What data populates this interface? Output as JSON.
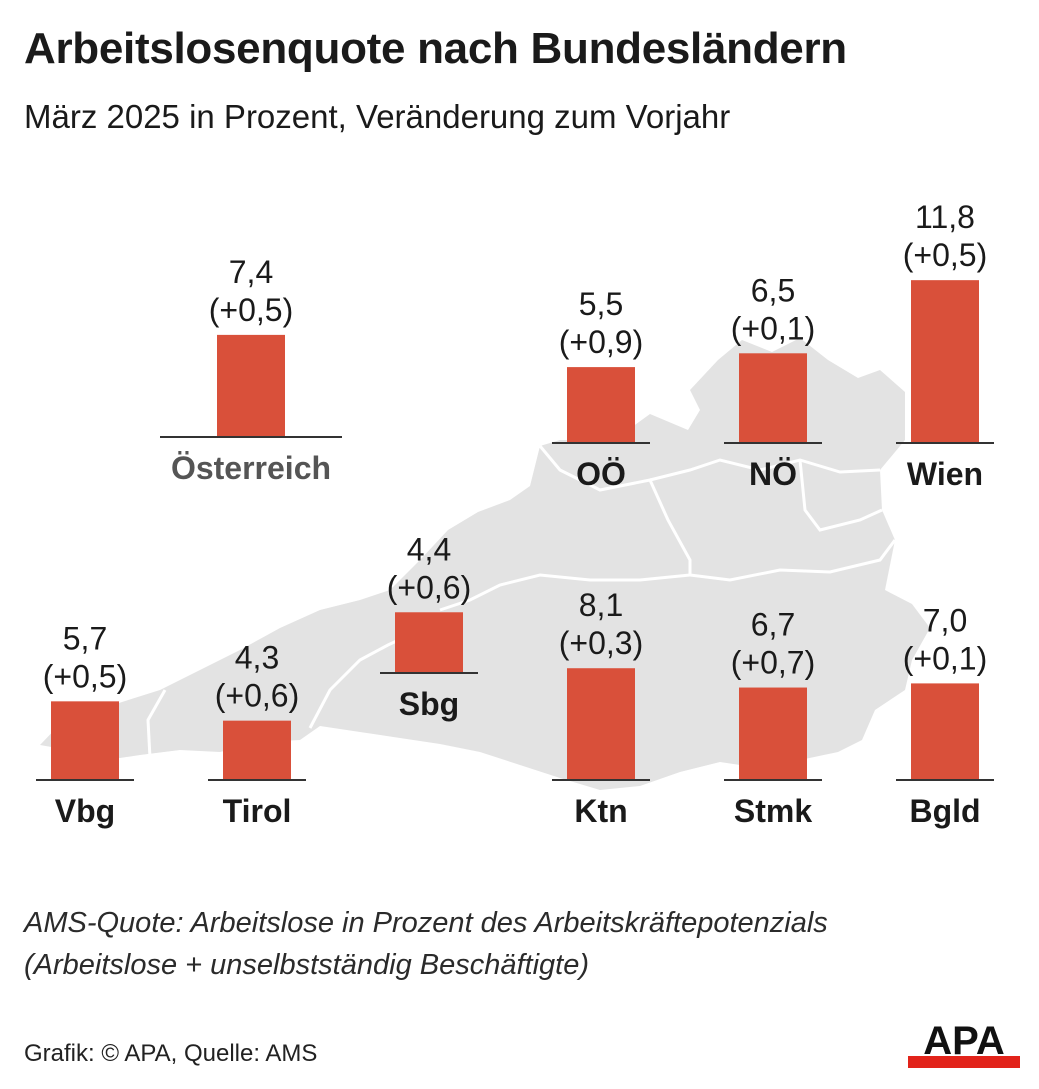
{
  "header": {
    "title": "Arbeitslosenquote nach Bundesländern",
    "subtitle": "März 2025 in Prozent, Veränderung zum Vorjahr"
  },
  "footer": {
    "note_line1": "AMS-Quote: Arbeitslose in Prozent des Arbeitskräftepotenzials",
    "note_line2": "(Arbeitslose + unselbstständig Beschäftigte)",
    "source": "Grafik: © APA, Quelle: AMS",
    "logo_text": "APA"
  },
  "colors": {
    "bar": "#d9503a",
    "map": "#e3e3e3",
    "map_border": "#ffffff",
    "axis": "#333333",
    "text": "#1a1a1a",
    "austria_label": "#555555",
    "logo_red": "#e2231a"
  },
  "chart_data": {
    "type": "bar",
    "value_unit": "%",
    "items": [
      {
        "label": "Österreich",
        "value": 7.4,
        "value_label": "7,4",
        "change": 0.5,
        "change_label": "(+0,5)"
      },
      {
        "label": "OÖ",
        "value": 5.5,
        "value_label": "5,5",
        "change": 0.9,
        "change_label": "(+0,9)"
      },
      {
        "label": "NÖ",
        "value": 6.5,
        "value_label": "6,5",
        "change": 0.1,
        "change_label": "(+0,1)"
      },
      {
        "label": "Wien",
        "value": 11.8,
        "value_label": "11,8",
        "change": 0.5,
        "change_label": "(+0,5)"
      },
      {
        "label": "Vbg",
        "value": 5.7,
        "value_label": "5,7",
        "change": 0.5,
        "change_label": "(+0,5)"
      },
      {
        "label": "Tirol",
        "value": 4.3,
        "value_label": "4,3",
        "change": 0.6,
        "change_label": "(+0,6)"
      },
      {
        "label": "Sbg",
        "value": 4.4,
        "value_label": "4,4",
        "change": 0.6,
        "change_label": "(+0,6)"
      },
      {
        "label": "Ktn",
        "value": 8.1,
        "value_label": "8,1",
        "change": 0.3,
        "change_label": "(+0,3)"
      },
      {
        "label": "Stmk",
        "value": 6.7,
        "value_label": "6,7",
        "change": 0.7,
        "change_label": "(+0,7)"
      },
      {
        "label": "Bgld",
        "value": 7.0,
        "value_label": "7,0",
        "change": 0.1,
        "change_label": "(+0,1)"
      }
    ]
  }
}
